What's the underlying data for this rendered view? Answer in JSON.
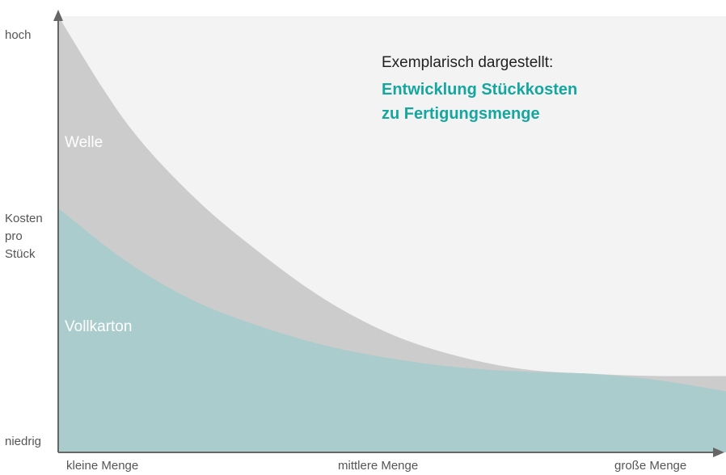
{
  "header": {
    "pre_title": "Exemplarisch dargestellt:",
    "title": "Entwicklung Stückkosten\nzu Fertigungsmenge"
  },
  "axes": {
    "y_high": "hoch",
    "y_label": "Kosten\npro\nStück",
    "y_low": "niedrig",
    "x_small": "kleine Menge",
    "x_mid": "mittlere Menge",
    "x_large": "große Menge"
  },
  "colors": {
    "background": "#f3f3f3",
    "welle": "#cccccc",
    "vollkarton": "#aacccd",
    "vollkarton_light": "#c3e6e6",
    "axis": "#666666",
    "accent": "#16a6a0"
  },
  "chart_data": {
    "type": "area",
    "x": [
      0,
      0.1,
      0.2,
      0.3,
      0.4,
      0.5,
      0.6,
      0.7,
      0.8,
      0.9,
      1.0
    ],
    "ylim": [
      0,
      100
    ],
    "series": [
      {
        "name": "Welle",
        "values": [
          100,
          76,
          59,
          46,
          35,
          27,
          22,
          19,
          18,
          17.5,
          17.5
        ]
      },
      {
        "name": "Vollkarton",
        "values": [
          56,
          44,
          35,
          29,
          24.5,
          21.5,
          19.5,
          18.5,
          18,
          16.5,
          14
        ]
      }
    ]
  }
}
